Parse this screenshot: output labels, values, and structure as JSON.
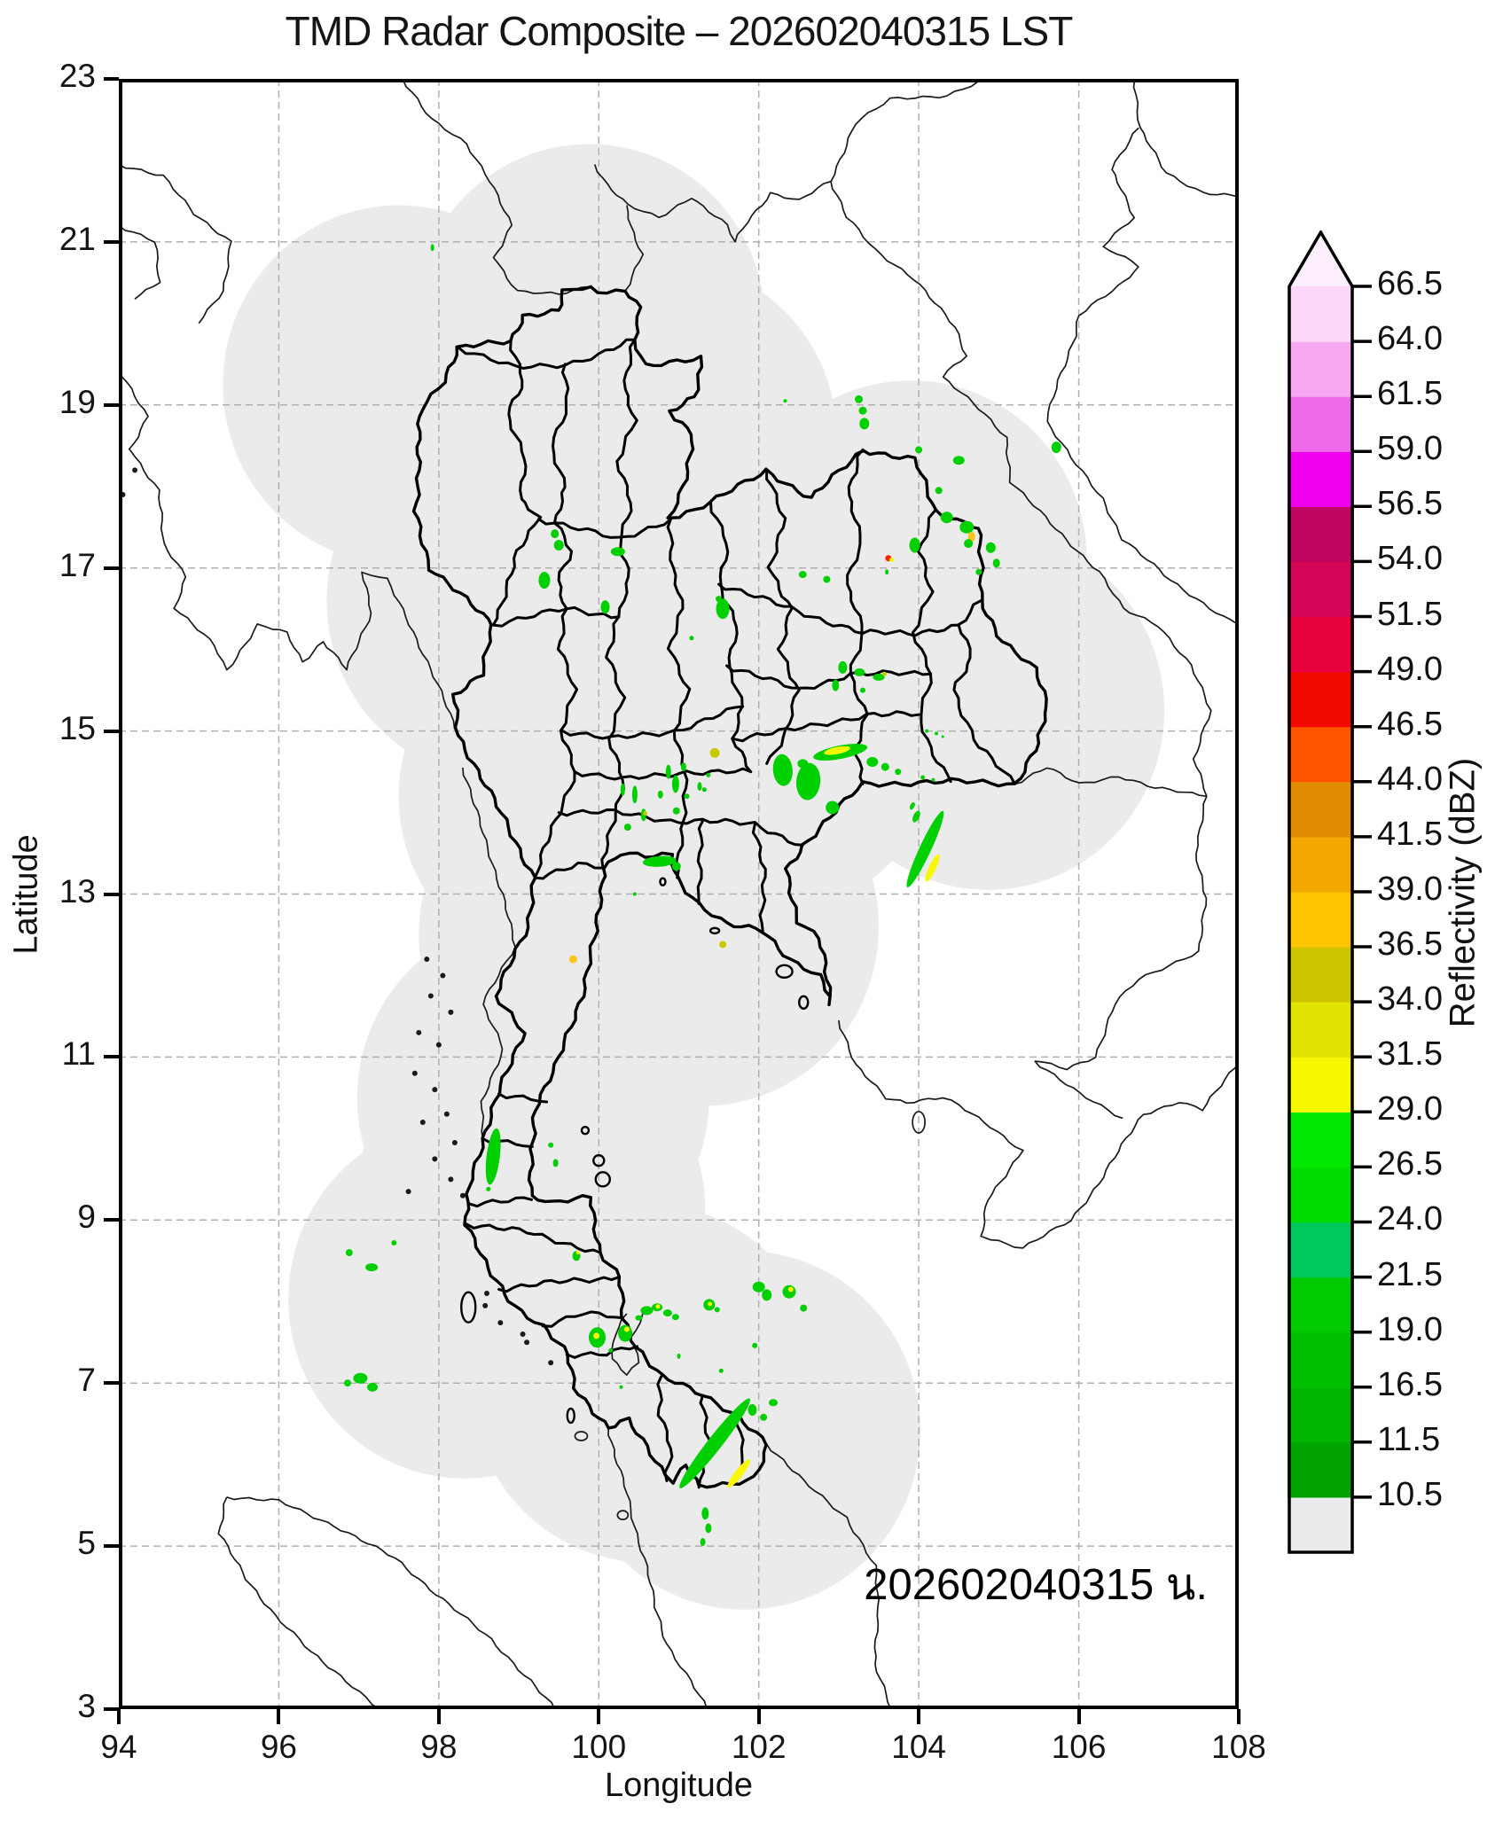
{
  "title": "TMD Radar Composite – 202602040315 LST",
  "timestamp_label": "202602040315 น.",
  "axes": {
    "xlabel": "Longitude",
    "ylabel": "Latitude",
    "lon_range": [
      94,
      108
    ],
    "lat_range": [
      3,
      23
    ],
    "lon_ticks": [
      94,
      96,
      98,
      100,
      102,
      104,
      106,
      108
    ],
    "lat_ticks": [
      3,
      5,
      7,
      9,
      11,
      13,
      15,
      17,
      19,
      21,
      23
    ],
    "grid_color": "#b0b0b0"
  },
  "colorbar": {
    "label": "Reflectivity (dBZ)",
    "tick_labels": [
      "10.5",
      "11.5",
      "16.5",
      "19.0",
      "21.5",
      "24.0",
      "26.5",
      "29.0",
      "31.5",
      "34.0",
      "36.5",
      "39.0",
      "41.5",
      "44.0",
      "46.5",
      "49.0",
      "51.5",
      "54.0",
      "56.5",
      "59.0",
      "61.5",
      "64.0",
      "66.5"
    ],
    "segment_colors_bottom_to_top": [
      "#ebebeb",
      "#00a300",
      "#00b500",
      "#00bf00",
      "#00ca00",
      "#00c75a",
      "#00dc00",
      "#00e800",
      "#f7f700",
      "#e3e300",
      "#cfc400",
      "#ffc400",
      "#f2a800",
      "#e08c00",
      "#ff5500",
      "#f00a00",
      "#e8003e",
      "#d40456",
      "#bf0560",
      "#ee00ee",
      "#ef6ae9",
      "#f6a9f1",
      "#fbd7f9"
    ],
    "arrow_color": "#fdeffd"
  },
  "map": {
    "coverage_color": "#ebebeb",
    "coverage_radius_deg": 2.2,
    "coverage_circles": [
      [
        99.88,
        20.0
      ],
      [
        97.5,
        19.25
      ],
      [
        98.92,
        18.77
      ],
      [
        100.78,
        18.58
      ],
      [
        98.8,
        16.6
      ],
      [
        100.27,
        16.79
      ],
      [
        102.82,
        16.46
      ],
      [
        103.9,
        17.1
      ],
      [
        104.87,
        15.25
      ],
      [
        102.08,
        14.93
      ],
      [
        100.6,
        13.9
      ],
      [
        99.7,
        14.2
      ],
      [
        101.3,
        12.6
      ],
      [
        99.95,
        12.5
      ],
      [
        99.18,
        10.5
      ],
      [
        99.13,
        9.13
      ],
      [
        98.32,
        8.03
      ],
      [
        100.6,
        7.0
      ],
      [
        101.82,
        6.42
      ]
    ],
    "echo_colors": {
      "g": "#00cf00",
      "y": "#f8f800",
      "o": "#c8c800",
      "a": "#ffc41e",
      "r": "#ff1e00"
    },
    "echoes": [
      [
        97.92,
        20.93,
        4,
        8,
        "g",
        0
      ],
      [
        102.33,
        19.05,
        4,
        4,
        "g",
        0
      ],
      [
        103.25,
        19.07,
        9,
        9,
        "g",
        0
      ],
      [
        103.3,
        18.93,
        9,
        9,
        "g",
        0
      ],
      [
        103.32,
        18.77,
        11,
        13,
        "g",
        0
      ],
      [
        104.0,
        18.45,
        8,
        8,
        "g",
        0
      ],
      [
        104.5,
        18.32,
        13,
        10,
        "g",
        0
      ],
      [
        105.72,
        18.48,
        11,
        13,
        "g",
        0
      ],
      [
        104.25,
        17.95,
        8,
        8,
        "g",
        0
      ],
      [
        103.95,
        17.28,
        12,
        17,
        "g",
        0
      ],
      [
        104.35,
        17.62,
        14,
        13,
        "g",
        0
      ],
      [
        104.6,
        17.5,
        16,
        14,
        "g",
        0
      ],
      [
        104.66,
        17.38,
        8,
        12,
        "a",
        0
      ],
      [
        104.62,
        17.3,
        10,
        10,
        "g",
        0
      ],
      [
        104.9,
        17.25,
        11,
        12,
        "g",
        0
      ],
      [
        104.97,
        17.06,
        8,
        10,
        "g",
        0
      ],
      [
        104.75,
        16.95,
        7,
        7,
        "g",
        0
      ],
      [
        103.62,
        17.12,
        7,
        7,
        "r",
        0
      ],
      [
        103.66,
        17.1,
        5,
        5,
        "y",
        0
      ],
      [
        103.6,
        16.95,
        4,
        6,
        "g",
        0
      ],
      [
        99.45,
        17.42,
        9,
        10,
        "g",
        0
      ],
      [
        99.5,
        17.28,
        11,
        12,
        "g",
        0
      ],
      [
        100.24,
        17.2,
        16,
        10,
        "g",
        0
      ],
      [
        99.32,
        16.85,
        13,
        19,
        "g",
        0
      ],
      [
        100.08,
        16.52,
        10,
        15,
        "g",
        0
      ],
      [
        101.55,
        16.5,
        15,
        23,
        "g",
        0
      ],
      [
        101.5,
        16.62,
        7,
        7,
        "g",
        0
      ],
      [
        102.55,
        16.92,
        9,
        8,
        "g",
        0
      ],
      [
        102.85,
        16.86,
        8,
        8,
        "g",
        0
      ],
      [
        101.16,
        16.14,
        5,
        5,
        "g",
        0
      ],
      [
        103.05,
        15.78,
        10,
        14,
        "g",
        0
      ],
      [
        103.26,
        15.72,
        12,
        9,
        "g",
        0
      ],
      [
        103.5,
        15.66,
        13,
        8,
        "g",
        0
      ],
      [
        103.57,
        15.7,
        5,
        5,
        "o",
        0
      ],
      [
        102.96,
        15.56,
        8,
        13,
        "g",
        0
      ],
      [
        103.3,
        15.5,
        6,
        6,
        "g",
        0
      ],
      [
        104.1,
        15.0,
        4,
        4,
        "g",
        0
      ],
      [
        104.22,
        14.97,
        4,
        4,
        "g",
        0
      ],
      [
        104.3,
        14.93,
        3,
        3,
        "g",
        0
      ],
      [
        103.02,
        14.74,
        62,
        15,
        "g",
        -11
      ],
      [
        102.98,
        14.76,
        30,
        8,
        "y",
        -11
      ],
      [
        103.42,
        14.62,
        13,
        11,
        "g",
        0
      ],
      [
        103.58,
        14.56,
        9,
        9,
        "g",
        0
      ],
      [
        103.74,
        14.5,
        7,
        7,
        "g",
        0
      ],
      [
        104.05,
        14.43,
        5,
        5,
        "g",
        0
      ],
      [
        104.18,
        14.4,
        4,
        4,
        "g",
        0
      ],
      [
        102.3,
        14.52,
        22,
        36,
        "g",
        -5
      ],
      [
        102.62,
        14.38,
        27,
        42,
        "g",
        5
      ],
      [
        102.55,
        14.6,
        12,
        10,
        "g",
        0
      ],
      [
        102.92,
        14.06,
        15,
        15,
        "g",
        0
      ],
      [
        101.45,
        14.73,
        11,
        11,
        "o",
        0
      ],
      [
        100.87,
        14.5,
        6,
        16,
        "g",
        0
      ],
      [
        100.96,
        14.35,
        8,
        20,
        "g",
        0
      ],
      [
        101.06,
        14.56,
        6,
        10,
        "g",
        0
      ],
      [
        100.77,
        14.22,
        6,
        9,
        "g",
        0
      ],
      [
        101.1,
        14.2,
        6,
        6,
        "g",
        0
      ],
      [
        100.97,
        14.02,
        8,
        8,
        "g",
        0
      ],
      [
        101.26,
        14.32,
        5,
        10,
        "g",
        0
      ],
      [
        101.37,
        14.46,
        5,
        5,
        "g",
        0
      ],
      [
        100.45,
        14.22,
        6,
        20,
        "g",
        0
      ],
      [
        100.56,
        13.97,
        6,
        14,
        "g",
        0
      ],
      [
        100.36,
        13.82,
        8,
        8,
        "g",
        0
      ],
      [
        100.3,
        14.28,
        5,
        14,
        "g",
        0
      ],
      [
        101.32,
        14.28,
        5,
        5,
        "g",
        0
      ],
      [
        100.58,
        13.99,
        5,
        5,
        "o",
        0
      ],
      [
        104.08,
        13.55,
        13,
        95,
        "g",
        25
      ],
      [
        104.17,
        13.32,
        8,
        34,
        "y",
        25
      ],
      [
        103.97,
        13.95,
        7,
        14,
        "g",
        25
      ],
      [
        103.92,
        14.08,
        5,
        9,
        "g",
        25
      ],
      [
        100.76,
        13.4,
        38,
        12,
        "g",
        -4
      ],
      [
        100.97,
        13.34,
        10,
        10,
        "g",
        0
      ],
      [
        100.45,
        13.0,
        4,
        4,
        "g",
        0
      ],
      [
        99.68,
        12.2,
        9,
        9,
        "a",
        0
      ],
      [
        101.55,
        12.38,
        8,
        8,
        "o",
        0
      ],
      [
        98.68,
        9.78,
        15,
        64,
        "g",
        7
      ],
      [
        98.62,
        9.38,
        5,
        5,
        "g",
        0
      ],
      [
        99.4,
        9.92,
        6,
        6,
        "g",
        0
      ],
      [
        99.46,
        9.7,
        6,
        9,
        "g",
        0
      ],
      [
        96.88,
        8.6,
        8,
        8,
        "g",
        0
      ],
      [
        97.16,
        8.42,
        14,
        9,
        "g",
        0
      ],
      [
        97.44,
        8.72,
        6,
        6,
        "g",
        0
      ],
      [
        99.72,
        8.56,
        9,
        11,
        "g",
        0
      ],
      [
        99.74,
        8.6,
        4,
        4,
        "y",
        0
      ],
      [
        97.02,
        7.06,
        16,
        12,
        "g",
        0
      ],
      [
        97.17,
        6.95,
        12,
        10,
        "g",
        0
      ],
      [
        96.86,
        7.0,
        8,
        8,
        "g",
        0
      ],
      [
        100.6,
        7.89,
        14,
        10,
        "g",
        0
      ],
      [
        100.73,
        7.93,
        12,
        9,
        "g",
        0
      ],
      [
        100.74,
        7.94,
        5,
        5,
        "y",
        0
      ],
      [
        100.86,
        7.86,
        10,
        8,
        "g",
        0
      ],
      [
        100.96,
        7.81,
        8,
        7,
        "g",
        0
      ],
      [
        100.5,
        7.8,
        8,
        6,
        "g",
        0
      ],
      [
        99.98,
        7.56,
        19,
        23,
        "g",
        0
      ],
      [
        99.97,
        7.58,
        7,
        7,
        "y",
        0
      ],
      [
        100.33,
        7.61,
        16,
        19,
        "g",
        0
      ],
      [
        100.35,
        7.66,
        6,
        6,
        "y",
        0
      ],
      [
        100.15,
        7.4,
        5,
        5,
        "g",
        0
      ],
      [
        101.38,
        7.96,
        13,
        13,
        "g",
        0
      ],
      [
        101.39,
        7.97,
        5,
        5,
        "y",
        0
      ],
      [
        101.48,
        7.9,
        6,
        6,
        "g",
        0
      ],
      [
        102.0,
        8.18,
        14,
        12,
        "g",
        0
      ],
      [
        102.1,
        8.08,
        11,
        13,
        "g",
        0
      ],
      [
        102.38,
        8.12,
        15,
        15,
        "g",
        0
      ],
      [
        102.4,
        8.15,
        6,
        6,
        "y",
        0
      ],
      [
        102.56,
        7.92,
        8,
        8,
        "g",
        0
      ],
      [
        101.95,
        7.46,
        6,
        6,
        "g",
        0
      ],
      [
        101.53,
        7.15,
        5,
        5,
        "g",
        0
      ],
      [
        101.0,
        7.33,
        4,
        6,
        "g",
        0
      ],
      [
        102.18,
        6.76,
        10,
        8,
        "g",
        0
      ],
      [
        101.92,
        6.67,
        10,
        13,
        "g",
        0
      ],
      [
        102.06,
        6.58,
        8,
        8,
        "g",
        0
      ],
      [
        101.45,
        6.26,
        16,
        128,
        "g",
        38
      ],
      [
        101.75,
        5.89,
        9,
        40,
        "y",
        38
      ],
      [
        101.33,
        5.4,
        8,
        14,
        "g",
        0
      ],
      [
        101.37,
        5.22,
        7,
        11,
        "g",
        0
      ],
      [
        101.3,
        5.05,
        6,
        9,
        "g",
        0
      ],
      [
        100.28,
        6.95,
        4,
        4,
        "g",
        0
      ]
    ]
  }
}
